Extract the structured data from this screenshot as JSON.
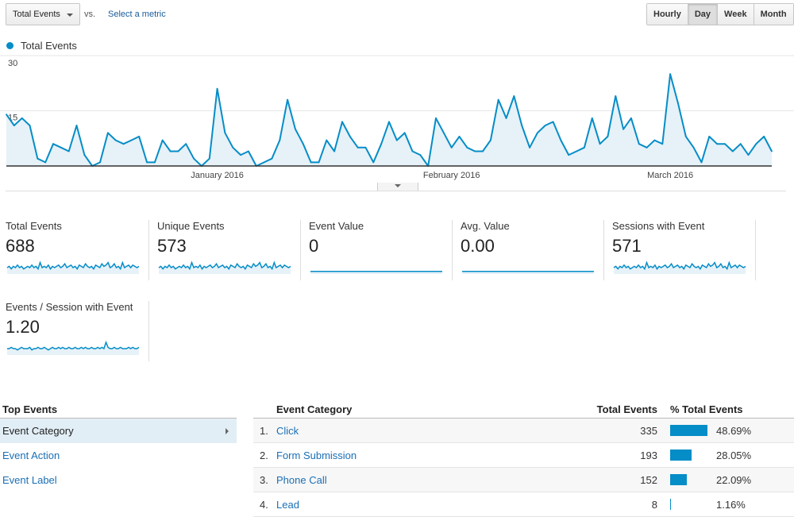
{
  "toolbar": {
    "metric_select": "Total Events",
    "vs": "vs.",
    "select_metric": "Select a metric",
    "granularity": [
      {
        "label": "Hourly",
        "active": false
      },
      {
        "label": "Day",
        "active": true
      },
      {
        "label": "Week",
        "active": false
      },
      {
        "label": "Month",
        "active": false
      }
    ]
  },
  "colors": {
    "accent": "#058dc7",
    "fill": "#e6f1f8",
    "link": "#1a6fb5"
  },
  "chart_data": {
    "type": "area",
    "legend": "Total Events",
    "yticks": [
      "30",
      "15"
    ],
    "ylim": [
      0,
      30
    ],
    "xticks": [
      {
        "label": "January 2016",
        "index": 27
      },
      {
        "label": "February 2016",
        "index": 57
      },
      {
        "label": "March 2016",
        "index": 85
      }
    ],
    "values": [
      14,
      11,
      13,
      11,
      2,
      1,
      6,
      5,
      4,
      11,
      3,
      0,
      1,
      9,
      7,
      6,
      7,
      8,
      1,
      1,
      7,
      4,
      4,
      6,
      2,
      0,
      2,
      21,
      9,
      5,
      3,
      4,
      0,
      1,
      2,
      7,
      18,
      10,
      6,
      1,
      1,
      7,
      4,
      12,
      8,
      5,
      5,
      1,
      6,
      12,
      7,
      9,
      4,
      3,
      0,
      13,
      9,
      5,
      8,
      5,
      4,
      4,
      7,
      18,
      13,
      19,
      11,
      5,
      9,
      11,
      12,
      7,
      3,
      4,
      5,
      13,
      6,
      8,
      19,
      10,
      13,
      6,
      5,
      7,
      6,
      25,
      17,
      8,
      5,
      1,
      8,
      6,
      6,
      4,
      6,
      3,
      6,
      8,
      4
    ]
  },
  "metrics": [
    {
      "label": "Total Events",
      "value": "688",
      "spark": [
        5,
        6,
        4,
        6,
        5,
        7,
        5,
        6,
        4,
        5,
        6,
        5,
        7,
        5,
        6,
        4,
        9,
        5,
        6,
        5,
        7,
        4,
        6,
        5,
        6,
        7,
        5,
        6,
        8,
        5,
        6,
        7,
        5,
        6,
        4,
        7,
        6,
        5,
        8,
        6,
        5,
        6,
        4,
        7,
        6,
        5,
        8,
        6,
        7,
        9,
        5,
        6,
        8,
        5,
        6,
        4,
        9,
        5,
        6,
        7,
        5,
        7,
        6,
        5,
        6
      ]
    },
    {
      "label": "Unique Events",
      "value": "573",
      "spark": [
        5,
        6,
        4,
        6,
        5,
        7,
        5,
        6,
        4,
        5,
        6,
        5,
        7,
        5,
        6,
        4,
        9,
        5,
        6,
        5,
        7,
        4,
        6,
        5,
        6,
        7,
        5,
        6,
        8,
        5,
        6,
        7,
        5,
        6,
        4,
        7,
        6,
        5,
        8,
        6,
        5,
        6,
        4,
        7,
        6,
        5,
        8,
        6,
        7,
        9,
        5,
        6,
        8,
        5,
        6,
        4,
        9,
        5,
        6,
        7,
        5,
        7,
        6,
        5,
        6
      ]
    },
    {
      "label": "Event Value",
      "value": "0",
      "spark": [
        2,
        2
      ]
    },
    {
      "label": "Avg. Value",
      "value": "0.00",
      "spark": [
        2,
        2
      ]
    },
    {
      "label": "Sessions with Event",
      "value": "571",
      "spark": [
        5,
        6,
        4,
        6,
        5,
        7,
        5,
        6,
        4,
        5,
        6,
        5,
        7,
        5,
        6,
        4,
        9,
        5,
        6,
        5,
        7,
        4,
        6,
        5,
        6,
        7,
        5,
        6,
        8,
        5,
        6,
        7,
        5,
        6,
        4,
        7,
        6,
        5,
        8,
        6,
        5,
        6,
        4,
        7,
        6,
        5,
        8,
        6,
        7,
        9,
        5,
        6,
        8,
        5,
        6,
        4,
        9,
        5,
        6,
        7,
        5,
        7,
        6,
        5,
        6
      ]
    },
    {
      "label": "Events / Session with Event",
      "value": "1.20",
      "spark": [
        5,
        5,
        6,
        5,
        5,
        4,
        5,
        6,
        5,
        5,
        5,
        6,
        4,
        5,
        5,
        6,
        5,
        5,
        6,
        5,
        4,
        5,
        6,
        5,
        5,
        6,
        5,
        6,
        5,
        5,
        6,
        5,
        5,
        6,
        5,
        5,
        6,
        5,
        6,
        5,
        5,
        6,
        5,
        5,
        6,
        5,
        6,
        5,
        10,
        6,
        5,
        5,
        6,
        5,
        5,
        6,
        5,
        5,
        5,
        6,
        5,
        6,
        5,
        5,
        6
      ]
    }
  ],
  "top_events": {
    "title": "Top Events",
    "items": [
      {
        "label": "Event Category",
        "active": true
      },
      {
        "label": "Event Action",
        "active": false
      },
      {
        "label": "Event Label",
        "active": false
      }
    ]
  },
  "table": {
    "headers": {
      "category": "Event Category",
      "total": "Total Events",
      "percent": "% Total Events"
    },
    "rows": [
      {
        "idx": "1.",
        "category": "Click",
        "total": "335",
        "percent": "48.69%",
        "share": 0.4869
      },
      {
        "idx": "2.",
        "category": "Form Submission",
        "total": "193",
        "percent": "28.05%",
        "share": 0.2805
      },
      {
        "idx": "3.",
        "category": "Phone Call",
        "total": "152",
        "percent": "22.09%",
        "share": 0.2209
      },
      {
        "idx": "4.",
        "category": "Lead",
        "total": "8",
        "percent": "1.16%",
        "share": 0.0116
      }
    ]
  }
}
